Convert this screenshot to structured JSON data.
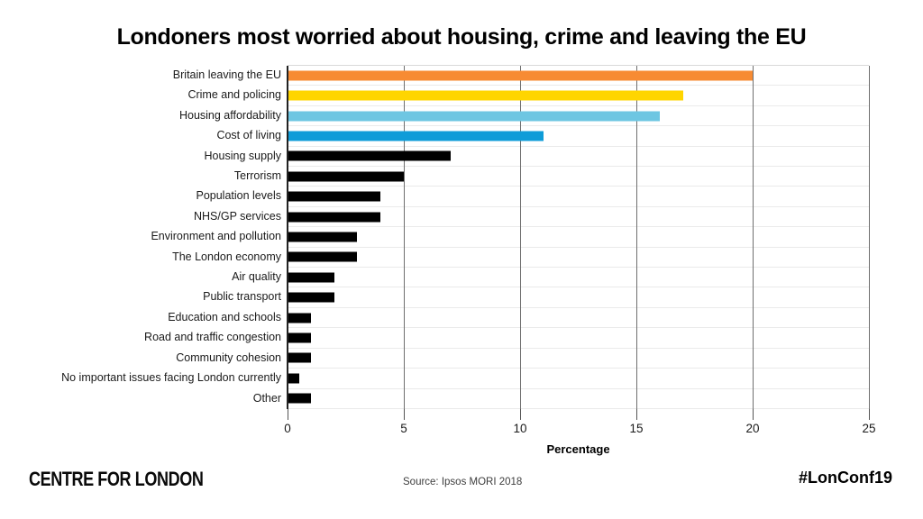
{
  "chart_data": {
    "type": "bar",
    "orientation": "horizontal",
    "title": "Londoners most worried about housing, crime and leaving the EU",
    "xlabel": "Percentage",
    "xlim": [
      0,
      25
    ],
    "xticks": [
      0,
      5,
      10,
      15,
      20,
      25
    ],
    "grid": "vertical gray major gridlines; faint horizontal row separators",
    "legend": "none",
    "categories": [
      "Britain leaving the EU",
      "Crime and policing",
      "Housing affordability",
      "Cost of living",
      "Housing supply",
      "Terrorism",
      "Population levels",
      "NHS/GP services",
      "Environment and pollution",
      "The London economy",
      "Air quality",
      "Public transport",
      "Education and schools",
      "Road and traffic congestion",
      "Community cohesion",
      "No important issues facing London currently",
      "Other"
    ],
    "values": [
      20,
      17,
      16,
      11,
      7,
      5,
      4,
      4,
      3,
      3,
      2,
      2,
      1,
      1,
      1,
      0.5,
      1
    ],
    "bar_colors": [
      "#F78B33",
      "#FFD500",
      "#6EC6E2",
      "#0F9CD8",
      "#000000",
      "#000000",
      "#000000",
      "#000000",
      "#000000",
      "#000000",
      "#000000",
      "#000000",
      "#000000",
      "#000000",
      "#000000",
      "#000000",
      "#000000"
    ],
    "accent_colors": {
      "orange": "#F78B33",
      "yellow": "#FFD500",
      "light_blue": "#6EC6E2",
      "blue": "#0F9CD8",
      "black": "#000000"
    }
  },
  "footer": {
    "logo_text": "CENTRE FOR LONDON",
    "source": "Source: Ipsos MORI 2018",
    "hashtag": "#LonConf19"
  }
}
